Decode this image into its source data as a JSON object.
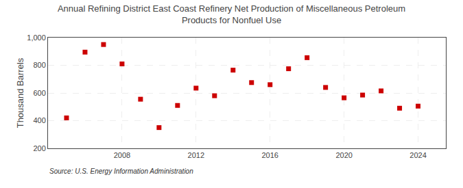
{
  "chart_data": {
    "type": "scatter",
    "title": "Annual Refining District East Coast Refinery Net Production of Miscellaneous Petroleum\nProducts for Nonfuel Use",
    "ylabel": "Thousand Barrels",
    "source": "Source: U.S. Energy Information Administration",
    "x": [
      2005,
      2006,
      2007,
      2008,
      2009,
      2010,
      2011,
      2012,
      2013,
      2014,
      2015,
      2016,
      2017,
      2018,
      2019,
      2020,
      2021,
      2022,
      2023,
      2024
    ],
    "values": [
      420,
      895,
      950,
      810,
      555,
      350,
      510,
      635,
      580,
      765,
      675,
      660,
      775,
      855,
      640,
      565,
      585,
      615,
      490,
      505
    ],
    "color": "#cc0000",
    "marker": "square",
    "xlim": [
      2004,
      2025.5
    ],
    "ylim": [
      200,
      1000
    ],
    "xticks": [
      2008,
      2012,
      2016,
      2020,
      2024
    ],
    "yticks": [
      200,
      400,
      600,
      800,
      {
        "value": 1000,
        "label": "1,000"
      }
    ],
    "grid": true
  }
}
